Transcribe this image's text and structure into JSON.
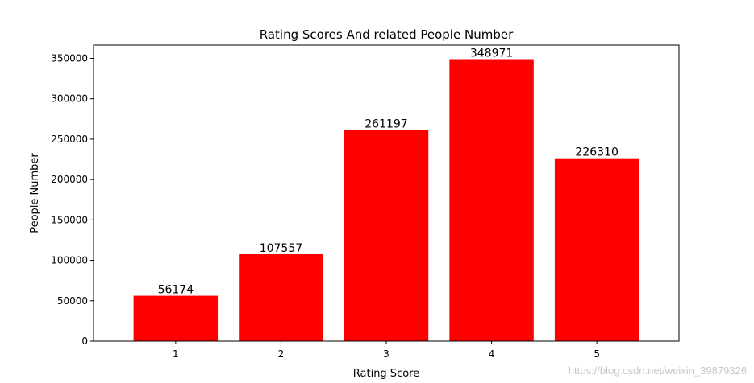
{
  "chart_data": {
    "type": "bar",
    "title": "Rating Scores And related People Number",
    "xlabel": "Rating Score",
    "ylabel": "People Number",
    "categories": [
      "1",
      "2",
      "3",
      "4",
      "5"
    ],
    "values": [
      56174,
      107557,
      261197,
      348971,
      226310
    ],
    "data_labels": [
      "56174",
      "107557",
      "261197",
      "348971",
      "226310"
    ],
    "ylim": [
      0,
      366420
    ],
    "yticks": [
      0,
      50000,
      100000,
      150000,
      200000,
      250000,
      300000,
      350000
    ],
    "ytick_labels": [
      "0",
      "50000",
      "100000",
      "150000",
      "200000",
      "250000",
      "300000",
      "350000"
    ],
    "bar_color": "#ff0000",
    "grid": false,
    "legend": "none"
  },
  "watermark": "https://blog.csdn.net/weixin_39879326"
}
